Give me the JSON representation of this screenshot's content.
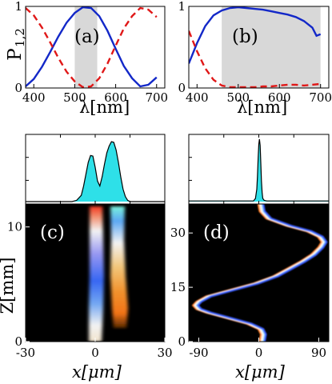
{
  "chart_data": [
    {
      "panel": "(a)",
      "type": "line",
      "ylabel_main": "P",
      "ylabel_sub": "1,2",
      "xlabel": "λ[nm]",
      "xlim": [
        380,
        720
      ],
      "ylim": [
        0,
        1
      ],
      "xticks": [
        400,
        500,
        600,
        700
      ],
      "yticks": [
        0,
        1
      ],
      "shaded_x": [
        500,
        555
      ],
      "series": [
        {
          "style": "solid",
          "color": "#1328c8",
          "x": [
            380,
            400,
            420,
            440,
            460,
            480,
            500,
            520,
            540,
            560,
            580,
            600,
            620,
            640,
            660,
            680,
            700
          ],
          "y": [
            0.02,
            0.11,
            0.26,
            0.44,
            0.63,
            0.8,
            0.92,
            0.99,
            0.98,
            0.88,
            0.7,
            0.48,
            0.27,
            0.12,
            0.02,
            0.04,
            0.13
          ]
        },
        {
          "style": "dashed",
          "color": "#e01818",
          "x": [
            380,
            400,
            420,
            440,
            460,
            480,
            500,
            520,
            540,
            560,
            580,
            600,
            620,
            640,
            660,
            680,
            700
          ],
          "y": [
            0.98,
            0.89,
            0.74,
            0.56,
            0.37,
            0.2,
            0.08,
            0.01,
            0.02,
            0.12,
            0.3,
            0.52,
            0.73,
            0.88,
            0.98,
            0.96,
            0.87
          ]
        }
      ]
    },
    {
      "panel": "(b)",
      "type": "line",
      "xlabel": "λ[nm]",
      "xlim": [
        380,
        720
      ],
      "ylim": [
        0,
        1
      ],
      "xticks": [
        400,
        500,
        600,
        700
      ],
      "yticks": [
        0,
        1
      ],
      "shaded_x": [
        460,
        700
      ],
      "series": [
        {
          "style": "solid",
          "color": "#1328c8",
          "x": [
            380,
            400,
            420,
            440,
            460,
            480,
            500,
            520,
            540,
            560,
            580,
            600,
            620,
            640,
            660,
            680,
            690,
            700
          ],
          "y": [
            0.3,
            0.55,
            0.76,
            0.89,
            0.95,
            0.98,
            0.99,
            0.98,
            0.97,
            0.96,
            0.94,
            0.92,
            0.9,
            0.87,
            0.82,
            0.74,
            0.64,
            0.66
          ]
        },
        {
          "style": "dashed",
          "color": "#e01818",
          "x": [
            380,
            400,
            420,
            440,
            460,
            480,
            500,
            520,
            540,
            560,
            580,
            600,
            620,
            640,
            660,
            680,
            700
          ],
          "y": [
            0.7,
            0.45,
            0.24,
            0.1,
            0.03,
            0.01,
            0.01,
            0.01,
            0.01,
            0.02,
            0.02,
            0.03,
            0.04,
            0.04,
            0.03,
            0.04,
            0.05
          ]
        }
      ]
    },
    {
      "panel": "profile-left",
      "type": "area",
      "xlim": [
        -30,
        30
      ],
      "fill": "#2ee0e8",
      "x": [
        -30,
        -10,
        -8,
        -6,
        -5,
        -4,
        -3,
        -2,
        -1,
        0,
        1,
        2,
        3,
        4,
        5,
        6,
        7,
        8,
        9,
        10,
        11,
        12,
        13,
        14,
        15,
        16,
        30
      ],
      "y": [
        0,
        0,
        0.02,
        0.1,
        0.25,
        0.44,
        0.63,
        0.74,
        0.73,
        0.55,
        0.33,
        0.25,
        0.4,
        0.6,
        0.78,
        0.89,
        0.96,
        0.95,
        0.83,
        0.63,
        0.4,
        0.2,
        0.08,
        0.02,
        0,
        0,
        0
      ]
    },
    {
      "panel": "profile-right",
      "type": "area",
      "xlim": [
        -105,
        105
      ],
      "fill": "#2ee0e8",
      "x": [
        -105,
        -8,
        -5,
        -3,
        -2,
        -1,
        0,
        1,
        2,
        3,
        4,
        5,
        6,
        8,
        12,
        105
      ],
      "y": [
        0.01,
        0.01,
        0.05,
        0.2,
        0.4,
        0.7,
        0.92,
        1.0,
        0.9,
        0.62,
        0.33,
        0.14,
        0.05,
        0.02,
        0.01,
        0.01
      ]
    },
    {
      "panel": "(c)",
      "type": "heatmap",
      "xlabel": "x[μm]",
      "ylabel": "Z[mm]",
      "xlim": [
        -30,
        30
      ],
      "ylim": [
        0,
        12
      ],
      "xticks": [
        -30,
        0,
        30
      ],
      "yticks": [
        0,
        10
      ]
    },
    {
      "panel": "(d)",
      "type": "heatmap",
      "xlabel": "x[μm]",
      "xlim": [
        -105,
        105
      ],
      "ylim": [
        0,
        38
      ],
      "xticks": [
        -90,
        0,
        90
      ],
      "yticks": [
        0,
        15,
        30
      ],
      "path_z": [
        0,
        2,
        3.5,
        5,
        6.5,
        8,
        9,
        10,
        11,
        12.5,
        14,
        16,
        18,
        20,
        22,
        24,
        26,
        27.5,
        29,
        30.5,
        32,
        34,
        36,
        38
      ],
      "path_x": [
        5,
        7,
        3,
        -15,
        -45,
        -75,
        -90,
        -95,
        -90,
        -75,
        -45,
        -5,
        25,
        45,
        65,
        82,
        93,
        98,
        92,
        75,
        45,
        15,
        5,
        3
      ]
    }
  ],
  "panel_labels": {
    "a": "(a)",
    "b": "(b)",
    "c": "(c)",
    "d": "(d)"
  },
  "axis_labels": {
    "a_x": "λ[nm]",
    "b_x": "λ[nm]",
    "a_y": "P",
    "a_y_sub": "1,2",
    "c_x": "x[μm]",
    "d_x": "x[μm]",
    "c_y": "Z[mm]"
  },
  "colors": {
    "blue": "#1328c8",
    "red": "#e01818",
    "shade": "#d8d8d8",
    "cyan": "#2ee0e8",
    "dark": "#000000"
  }
}
